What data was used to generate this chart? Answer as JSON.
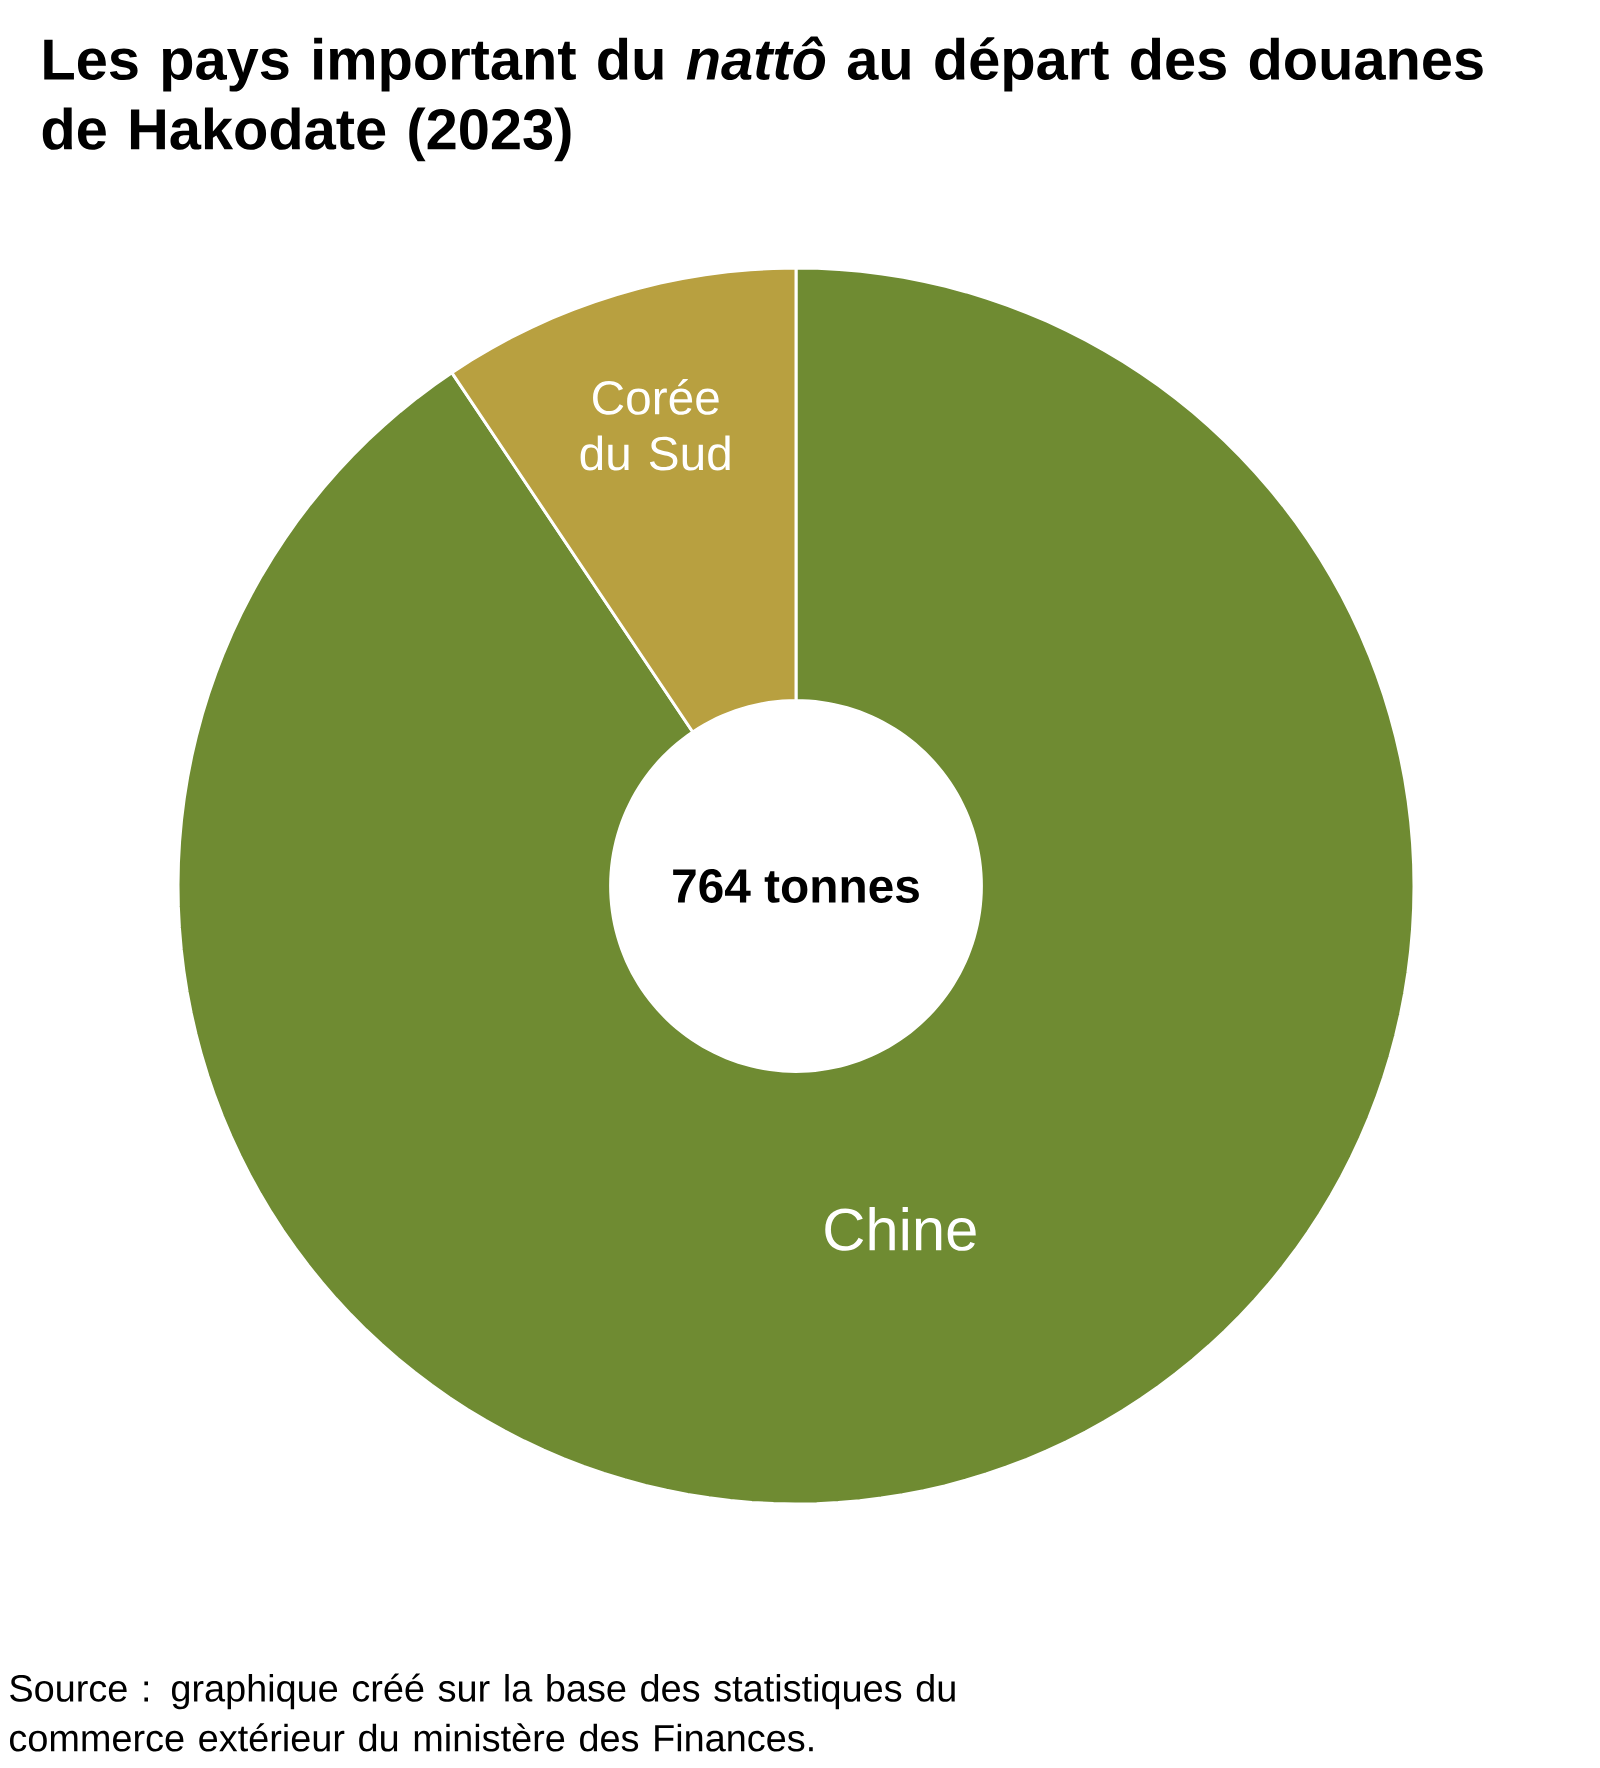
{
  "chart_data": {
    "type": "donut",
    "title": "Les pays important du *nattô* au départ des douanes de Hakodate (2023)",
    "categories": [
      "Chine",
      "Corée du Sud"
    ],
    "values": [
      90.6,
      9.4
    ],
    "colors": [
      "#6f8b32",
      "#b8a040"
    ],
    "annotations": [
      "764 tonnes",
      "Source : graphique créé sur la base des statistiques du commerce extérieur du ministère des Finances."
    ]
  }
}
